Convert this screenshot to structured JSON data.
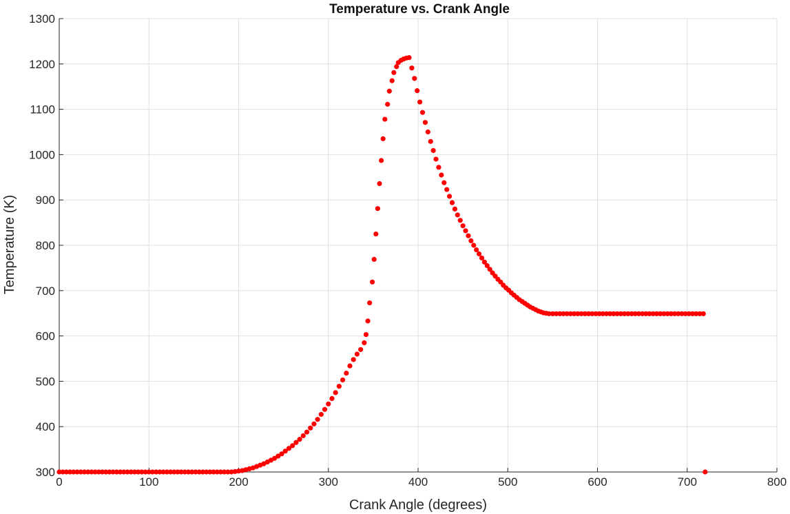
{
  "chart_data": {
    "type": "scatter",
    "title": "Temperature vs. Crank Angle",
    "xlabel": "Crank Angle (degrees)",
    "ylabel": "Temperature (K)",
    "xlim": [
      0,
      800
    ],
    "ylim": [
      300,
      1300
    ],
    "xticks": [
      0,
      100,
      200,
      300,
      400,
      500,
      600,
      700,
      800
    ],
    "yticks": [
      300,
      400,
      500,
      600,
      700,
      800,
      900,
      1000,
      1100,
      1200,
      1300
    ],
    "grid": true,
    "marker_color": "#ff0000",
    "series": [
      {
        "points": [
          [
            0,
            300
          ],
          [
            4,
            300
          ],
          [
            8,
            300
          ],
          [
            12,
            300
          ],
          [
            16,
            300
          ],
          [
            20,
            300
          ],
          [
            24,
            300
          ],
          [
            28,
            300
          ],
          [
            32,
            300
          ],
          [
            36,
            300
          ],
          [
            40,
            300
          ],
          [
            44,
            300
          ],
          [
            48,
            300
          ],
          [
            52,
            300
          ],
          [
            56,
            300
          ],
          [
            60,
            300
          ],
          [
            64,
            300
          ],
          [
            68,
            300
          ],
          [
            72,
            300
          ],
          [
            76,
            300
          ],
          [
            80,
            300
          ],
          [
            84,
            300
          ],
          [
            88,
            300
          ],
          [
            92,
            300
          ],
          [
            96,
            300
          ],
          [
            100,
            300
          ],
          [
            104,
            300
          ],
          [
            108,
            300
          ],
          [
            112,
            300
          ],
          [
            116,
            300
          ],
          [
            120,
            300
          ],
          [
            124,
            300
          ],
          [
            128,
            300
          ],
          [
            132,
            300
          ],
          [
            136,
            300
          ],
          [
            140,
            300
          ],
          [
            144,
            300
          ],
          [
            148,
            300
          ],
          [
            152,
            300
          ],
          [
            156,
            300
          ],
          [
            160,
            300
          ],
          [
            164,
            300
          ],
          [
            168,
            300
          ],
          [
            172,
            300
          ],
          [
            176,
            300
          ],
          [
            180,
            300
          ],
          [
            184,
            300
          ],
          [
            188,
            300
          ],
          [
            192,
            300
          ],
          [
            196,
            301
          ],
          [
            200,
            302
          ],
          [
            204,
            303
          ],
          [
            208,
            305
          ],
          [
            212,
            307
          ],
          [
            216,
            309
          ],
          [
            220,
            312
          ],
          [
            224,
            315
          ],
          [
            228,
            318
          ],
          [
            232,
            322
          ],
          [
            236,
            326
          ],
          [
            240,
            330
          ],
          [
            244,
            335
          ],
          [
            248,
            340
          ],
          [
            252,
            346
          ],
          [
            256,
            352
          ],
          [
            260,
            358
          ],
          [
            264,
            365
          ],
          [
            268,
            372
          ],
          [
            272,
            380
          ],
          [
            276,
            388
          ],
          [
            280,
            397
          ],
          [
            284,
            406
          ],
          [
            288,
            416
          ],
          [
            292,
            427
          ],
          [
            296,
            438
          ],
          [
            300,
            450
          ],
          [
            304,
            462
          ],
          [
            308,
            475
          ],
          [
            312,
            489
          ],
          [
            316,
            503
          ],
          [
            320,
            518
          ],
          [
            324,
            534
          ],
          [
            328,
            548
          ],
          [
            332,
            560
          ],
          [
            336,
            570
          ],
          [
            340,
            585
          ],
          [
            342,
            603
          ],
          [
            344,
            633
          ],
          [
            346,
            673
          ],
          [
            349,
            719
          ],
          [
            351,
            769
          ],
          [
            353,
            825
          ],
          [
            355,
            881
          ],
          [
            357,
            936
          ],
          [
            359,
            987
          ],
          [
            361,
            1035
          ],
          [
            363,
            1078
          ],
          [
            366,
            1111
          ],
          [
            368,
            1140
          ],
          [
            371,
            1163
          ],
          [
            373,
            1181
          ],
          [
            376,
            1194
          ],
          [
            378,
            1203
          ],
          [
            381,
            1208
          ],
          [
            384,
            1211
          ],
          [
            387,
            1213
          ],
          [
            390,
            1214
          ],
          [
            393,
            1191
          ],
          [
            396,
            1168
          ],
          [
            399,
            1141
          ],
          [
            402,
            1116
          ],
          [
            405,
            1093
          ],
          [
            408,
            1071
          ],
          [
            411,
            1050
          ],
          [
            414,
            1029
          ],
          [
            417,
            1009
          ],
          [
            420,
            990
          ],
          [
            423,
            972
          ],
          [
            426,
            955
          ],
          [
            429,
            938
          ],
          [
            432,
            923
          ],
          [
            435,
            908
          ],
          [
            438,
            894
          ],
          [
            441,
            880
          ],
          [
            444,
            867
          ],
          [
            447,
            855
          ],
          [
            450,
            843
          ],
          [
            453,
            832
          ],
          [
            456,
            821
          ],
          [
            459,
            810
          ],
          [
            462,
            800
          ],
          [
            465,
            790
          ],
          [
            468,
            781
          ],
          [
            471,
            772
          ],
          [
            474,
            763
          ],
          [
            477,
            755
          ],
          [
            480,
            747
          ],
          [
            483,
            739
          ],
          [
            486,
            732
          ],
          [
            489,
            725
          ],
          [
            492,
            719
          ],
          [
            495,
            712
          ],
          [
            498,
            706
          ],
          [
            501,
            701
          ],
          [
            504,
            695
          ],
          [
            507,
            690
          ],
          [
            510,
            685
          ],
          [
            513,
            680
          ],
          [
            516,
            676
          ],
          [
            519,
            672
          ],
          [
            522,
            668
          ],
          [
            525,
            664
          ],
          [
            528,
            661
          ],
          [
            531,
            658
          ],
          [
            534,
            655
          ],
          [
            537,
            653
          ],
          [
            540,
            651
          ],
          [
            543,
            650
          ],
          [
            546,
            649
          ],
          [
            550,
            649
          ],
          [
            554,
            649
          ],
          [
            558,
            649
          ],
          [
            562,
            649
          ],
          [
            566,
            649
          ],
          [
            570,
            649
          ],
          [
            574,
            649
          ],
          [
            578,
            649
          ],
          [
            582,
            649
          ],
          [
            586,
            649
          ],
          [
            590,
            649
          ],
          [
            594,
            649
          ],
          [
            598,
            649
          ],
          [
            602,
            649
          ],
          [
            606,
            649
          ],
          [
            610,
            649
          ],
          [
            614,
            649
          ],
          [
            618,
            649
          ],
          [
            622,
            649
          ],
          [
            626,
            649
          ],
          [
            630,
            649
          ],
          [
            634,
            649
          ],
          [
            638,
            649
          ],
          [
            642,
            649
          ],
          [
            646,
            649
          ],
          [
            650,
            649
          ],
          [
            654,
            649
          ],
          [
            658,
            649
          ],
          [
            662,
            649
          ],
          [
            666,
            649
          ],
          [
            670,
            649
          ],
          [
            674,
            649
          ],
          [
            678,
            649
          ],
          [
            682,
            649
          ],
          [
            686,
            649
          ],
          [
            690,
            649
          ],
          [
            694,
            649
          ],
          [
            698,
            649
          ],
          [
            702,
            649
          ],
          [
            706,
            649
          ],
          [
            710,
            649
          ],
          [
            714,
            649
          ],
          [
            718,
            649
          ],
          [
            720,
            300
          ]
        ]
      }
    ]
  }
}
